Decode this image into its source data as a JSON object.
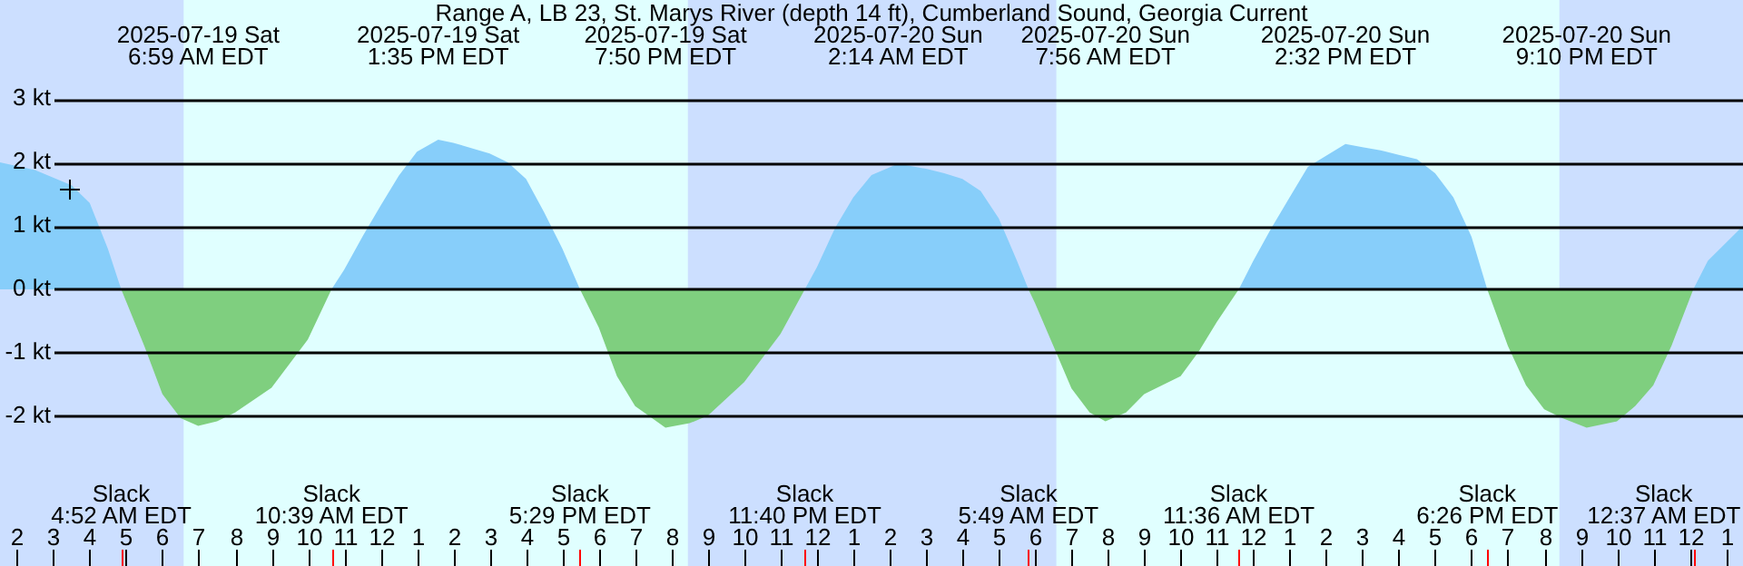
{
  "chart_data": {
    "type": "area",
    "title": "Range A, LB 23, St. Marys River (depth 14 ft), Cumberland Sound, Georgia Current",
    "series": [
      {
        "color": "#87cefa",
        "x": [
          "2025-07-19T01:32",
          "2025-07-19T02:30",
          "2025-07-19T03:30",
          "2025-07-19T04:00",
          "2025-07-19T04:30",
          "2025-07-19T04:52",
          "2025-07-19T10:39",
          "2025-07-19T11:00",
          "2025-07-19T11:30",
          "2025-07-19T12:00",
          "2025-07-19T12:30",
          "2025-07-19T13:00",
          "2025-07-19T13:35",
          "2025-07-19T14:00",
          "2025-07-19T15:00",
          "2025-07-19T15:30",
          "2025-07-19T16:00",
          "2025-07-19T16:30",
          "2025-07-19T17:00",
          "2025-07-19T17:29",
          "2025-07-19T23:40",
          "2025-07-20T00:00",
          "2025-07-20T00:30",
          "2025-07-20T01:00",
          "2025-07-20T01:30",
          "2025-07-20T02:14",
          "2025-07-20T03:00",
          "2025-07-20T03:30",
          "2025-07-20T04:00",
          "2025-07-20T04:30",
          "2025-07-20T05:00",
          "2025-07-20T05:30",
          "2025-07-20T05:49",
          "2025-07-20T11:36",
          "2025-07-20T12:00",
          "2025-07-20T12:30",
          "2025-07-20T13:00",
          "2025-07-20T13:30",
          "2025-07-20T14:32",
          "2025-07-20T15:00",
          "2025-07-20T15:30",
          "2025-07-20T16:00",
          "2025-07-20T16:30",
          "2025-07-20T17:00",
          "2025-07-20T17:30",
          "2025-07-20T18:00",
          "2025-07-20T18:26",
          "2025-07-21T00:06",
          "2025-07-21T00:30",
          "2025-07-21T01:28"
        ],
        "values": [
          2.0,
          1.88,
          1.64,
          1.36,
          0.64,
          0,
          0,
          0.31,
          0.83,
          1.32,
          1.79,
          2.17,
          2.36,
          2.31,
          2.14,
          2.0,
          1.74,
          1.21,
          0.64,
          0,
          0,
          0.35,
          0.97,
          1.45,
          1.8,
          1.98,
          1.9,
          1.83,
          1.74,
          1.55,
          1.12,
          0.45,
          0,
          0,
          0.45,
          0.97,
          1.45,
          1.93,
          2.29,
          2.24,
          2.19,
          2.12,
          2.05,
          1.83,
          1.45,
          0.83,
          0,
          0,
          0.45,
          1.0
        ]
      },
      {
        "color": "#7fcf7f",
        "x": [
          "2025-07-19T04:52",
          "2025-07-19T05:30",
          "2025-07-19T06:00",
          "2025-07-19T06:30",
          "2025-07-19T06:59",
          "2025-07-19T07:30",
          "2025-07-19T08:00",
          "2025-07-19T09:00",
          "2025-07-19T10:00",
          "2025-07-19T10:39",
          "2025-07-19T17:29",
          "2025-07-19T18:00",
          "2025-07-19T18:30",
          "2025-07-19T19:00",
          "2025-07-19T19:50",
          "2025-07-19T20:30",
          "2025-07-19T21:00",
          "2025-07-19T22:00",
          "2025-07-19T23:00",
          "2025-07-19T23:40",
          "2025-07-20T05:49",
          "2025-07-20T06:00",
          "2025-07-20T06:30",
          "2025-07-20T07:00",
          "2025-07-20T07:30",
          "2025-07-20T07:56",
          "2025-07-20T08:30",
          "2025-07-20T09:00",
          "2025-07-20T10:00",
          "2025-07-20T10:30",
          "2025-07-20T11:00",
          "2025-07-20T11:36",
          "2025-07-20T18:26",
          "2025-07-20T19:00",
          "2025-07-20T19:30",
          "2025-07-20T20:00",
          "2025-07-20T20:30",
          "2025-07-20T21:10",
          "2025-07-20T22:00",
          "2025-07-20T22:30",
          "2025-07-20T23:00",
          "2025-07-20T23:30",
          "2025-07-21T00:06"
        ],
        "values": [
          0,
          -0.89,
          -1.65,
          -2.03,
          -2.15,
          -2.08,
          -1.94,
          -1.55,
          -0.79,
          0,
          0,
          -0.6,
          -1.37,
          -1.84,
          -2.18,
          -2.11,
          -1.99,
          -1.46,
          -0.7,
          0,
          0,
          -0.22,
          -0.89,
          -1.56,
          -1.94,
          -2.08,
          -1.94,
          -1.65,
          -1.37,
          -0.98,
          -0.51,
          0,
          0,
          -0.89,
          -1.51,
          -1.89,
          -2.03,
          -2.18,
          -2.08,
          -1.84,
          -1.51,
          -0.89,
          0
        ]
      }
    ],
    "xlim": [
      "2025-07-19T01:32",
      "2025-07-21T01:28"
    ],
    "xticks": [
      {
        "value": "2025-07-19T02:00",
        "label": "2"
      },
      {
        "value": "2025-07-19T03:00",
        "label": "3"
      },
      {
        "value": "2025-07-19T04:00",
        "label": "4"
      },
      {
        "value": "2025-07-19T05:00",
        "label": "5"
      },
      {
        "value": "2025-07-19T06:00",
        "label": "6"
      },
      {
        "value": "2025-07-19T07:00",
        "label": "7"
      },
      {
        "value": "2025-07-19T08:00",
        "label": "8"
      },
      {
        "value": "2025-07-19T09:00",
        "label": "9"
      },
      {
        "value": "2025-07-19T10:00",
        "label": "10"
      },
      {
        "value": "2025-07-19T11:00",
        "label": "11"
      },
      {
        "value": "2025-07-19T12:00",
        "label": "12"
      },
      {
        "value": "2025-07-19T13:00",
        "label": "1"
      },
      {
        "value": "2025-07-19T14:00",
        "label": "2"
      },
      {
        "value": "2025-07-19T15:00",
        "label": "3"
      },
      {
        "value": "2025-07-19T16:00",
        "label": "4"
      },
      {
        "value": "2025-07-19T17:00",
        "label": "5"
      },
      {
        "value": "2025-07-19T18:00",
        "label": "6"
      },
      {
        "value": "2025-07-19T19:00",
        "label": "7"
      },
      {
        "value": "2025-07-19T20:00",
        "label": "8"
      },
      {
        "value": "2025-07-19T21:00",
        "label": "9"
      },
      {
        "value": "2025-07-19T22:00",
        "label": "10"
      },
      {
        "value": "2025-07-19T23:00",
        "label": "11"
      },
      {
        "value": "2025-07-20T00:00",
        "label": "12"
      },
      {
        "value": "2025-07-20T01:00",
        "label": "1"
      },
      {
        "value": "2025-07-20T02:00",
        "label": "2"
      },
      {
        "value": "2025-07-20T03:00",
        "label": "3"
      },
      {
        "value": "2025-07-20T04:00",
        "label": "4"
      },
      {
        "value": "2025-07-20T05:00",
        "label": "5"
      },
      {
        "value": "2025-07-20T06:00",
        "label": "6"
      },
      {
        "value": "2025-07-20T07:00",
        "label": "7"
      },
      {
        "value": "2025-07-20T08:00",
        "label": "8"
      },
      {
        "value": "2025-07-20T09:00",
        "label": "9"
      },
      {
        "value": "2025-07-20T10:00",
        "label": "10"
      },
      {
        "value": "2025-07-20T11:00",
        "label": "11"
      },
      {
        "value": "2025-07-20T12:00",
        "label": "12"
      },
      {
        "value": "2025-07-20T13:00",
        "label": "1"
      },
      {
        "value": "2025-07-20T14:00",
        "label": "2"
      },
      {
        "value": "2025-07-20T15:00",
        "label": "3"
      },
      {
        "value": "2025-07-20T16:00",
        "label": "4"
      },
      {
        "value": "2025-07-20T17:00",
        "label": "5"
      },
      {
        "value": "2025-07-20T18:00",
        "label": "6"
      },
      {
        "value": "2025-07-20T19:00",
        "label": "7"
      },
      {
        "value": "2025-07-20T20:00",
        "label": "8"
      },
      {
        "value": "2025-07-20T21:00",
        "label": "9"
      },
      {
        "value": "2025-07-20T22:00",
        "label": "10"
      },
      {
        "value": "2025-07-20T23:00",
        "label": "11"
      },
      {
        "value": "2025-07-21T00:00",
        "label": "12"
      },
      {
        "value": "2025-07-21T01:00",
        "label": "1"
      }
    ],
    "ylim": [
      -4.36,
      4.56
    ],
    "yticks": [
      {
        "value": -2,
        "label": "-2 kt"
      },
      {
        "value": -1,
        "label": "-1 kt"
      },
      {
        "value": 0,
        "label": "0 kt"
      },
      {
        "value": 1,
        "label": "1 kt"
      },
      {
        "value": 2,
        "label": "2 kt"
      },
      {
        "value": 3,
        "label": "3 kt"
      }
    ],
    "grid": "y",
    "bands": [
      {
        "axis": "x",
        "from": "2025-07-19T01:32",
        "to": "2025-07-19T06:35",
        "color": "#ccdfff"
      },
      {
        "axis": "x",
        "from": "2025-07-19T20:27",
        "to": "2025-07-20T06:35",
        "color": "#ccdfff"
      },
      {
        "axis": "x",
        "from": "2025-07-20T20:25",
        "to": "2025-07-21T01:28",
        "color": "#ccdfff"
      }
    ],
    "annotations": [
      "2025-07-19 Sat\n6:59 AM EDT",
      "2025-07-19 Sat\n1:35 PM EDT",
      "2025-07-19 Sat\n7:50 PM EDT",
      "2025-07-20 Sun\n2:14 AM EDT",
      "2025-07-20 Sun\n7:56 AM EDT",
      "2025-07-20 Sun\n2:32 PM EDT",
      "2025-07-20 Sun\n9:10 PM EDT",
      "Slack\n4:52 AM EDT",
      "Slack\n10:39 AM EDT",
      "Slack\n5:29 PM EDT",
      "Slack\n11:40 PM EDT",
      "Slack\n5:49 AM EDT",
      "Slack\n11:36 AM EDT",
      "Slack\n6:26 PM EDT",
      "Slack\n12:37 AM EDT"
    ]
  }
}
